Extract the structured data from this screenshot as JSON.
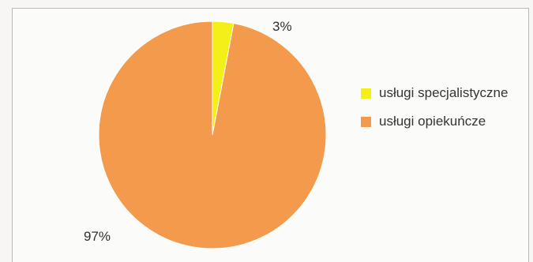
{
  "chart_data": {
    "type": "pie",
    "title": "",
    "slices": [
      {
        "label": "usługi specjalistyczne",
        "value": 3,
        "display": "3%",
        "color": "#f4ee19"
      },
      {
        "label": "usługi opiekuńcze",
        "value": 97,
        "display": "97%",
        "color": "#f39a4d"
      }
    ],
    "legend": {
      "placement": "right",
      "entries": [
        {
          "label": "usługi specjalistyczne",
          "color": "#f4ee19"
        },
        {
          "label": "usługi opiekuńcze",
          "color": "#f39a4d"
        }
      ]
    }
  }
}
